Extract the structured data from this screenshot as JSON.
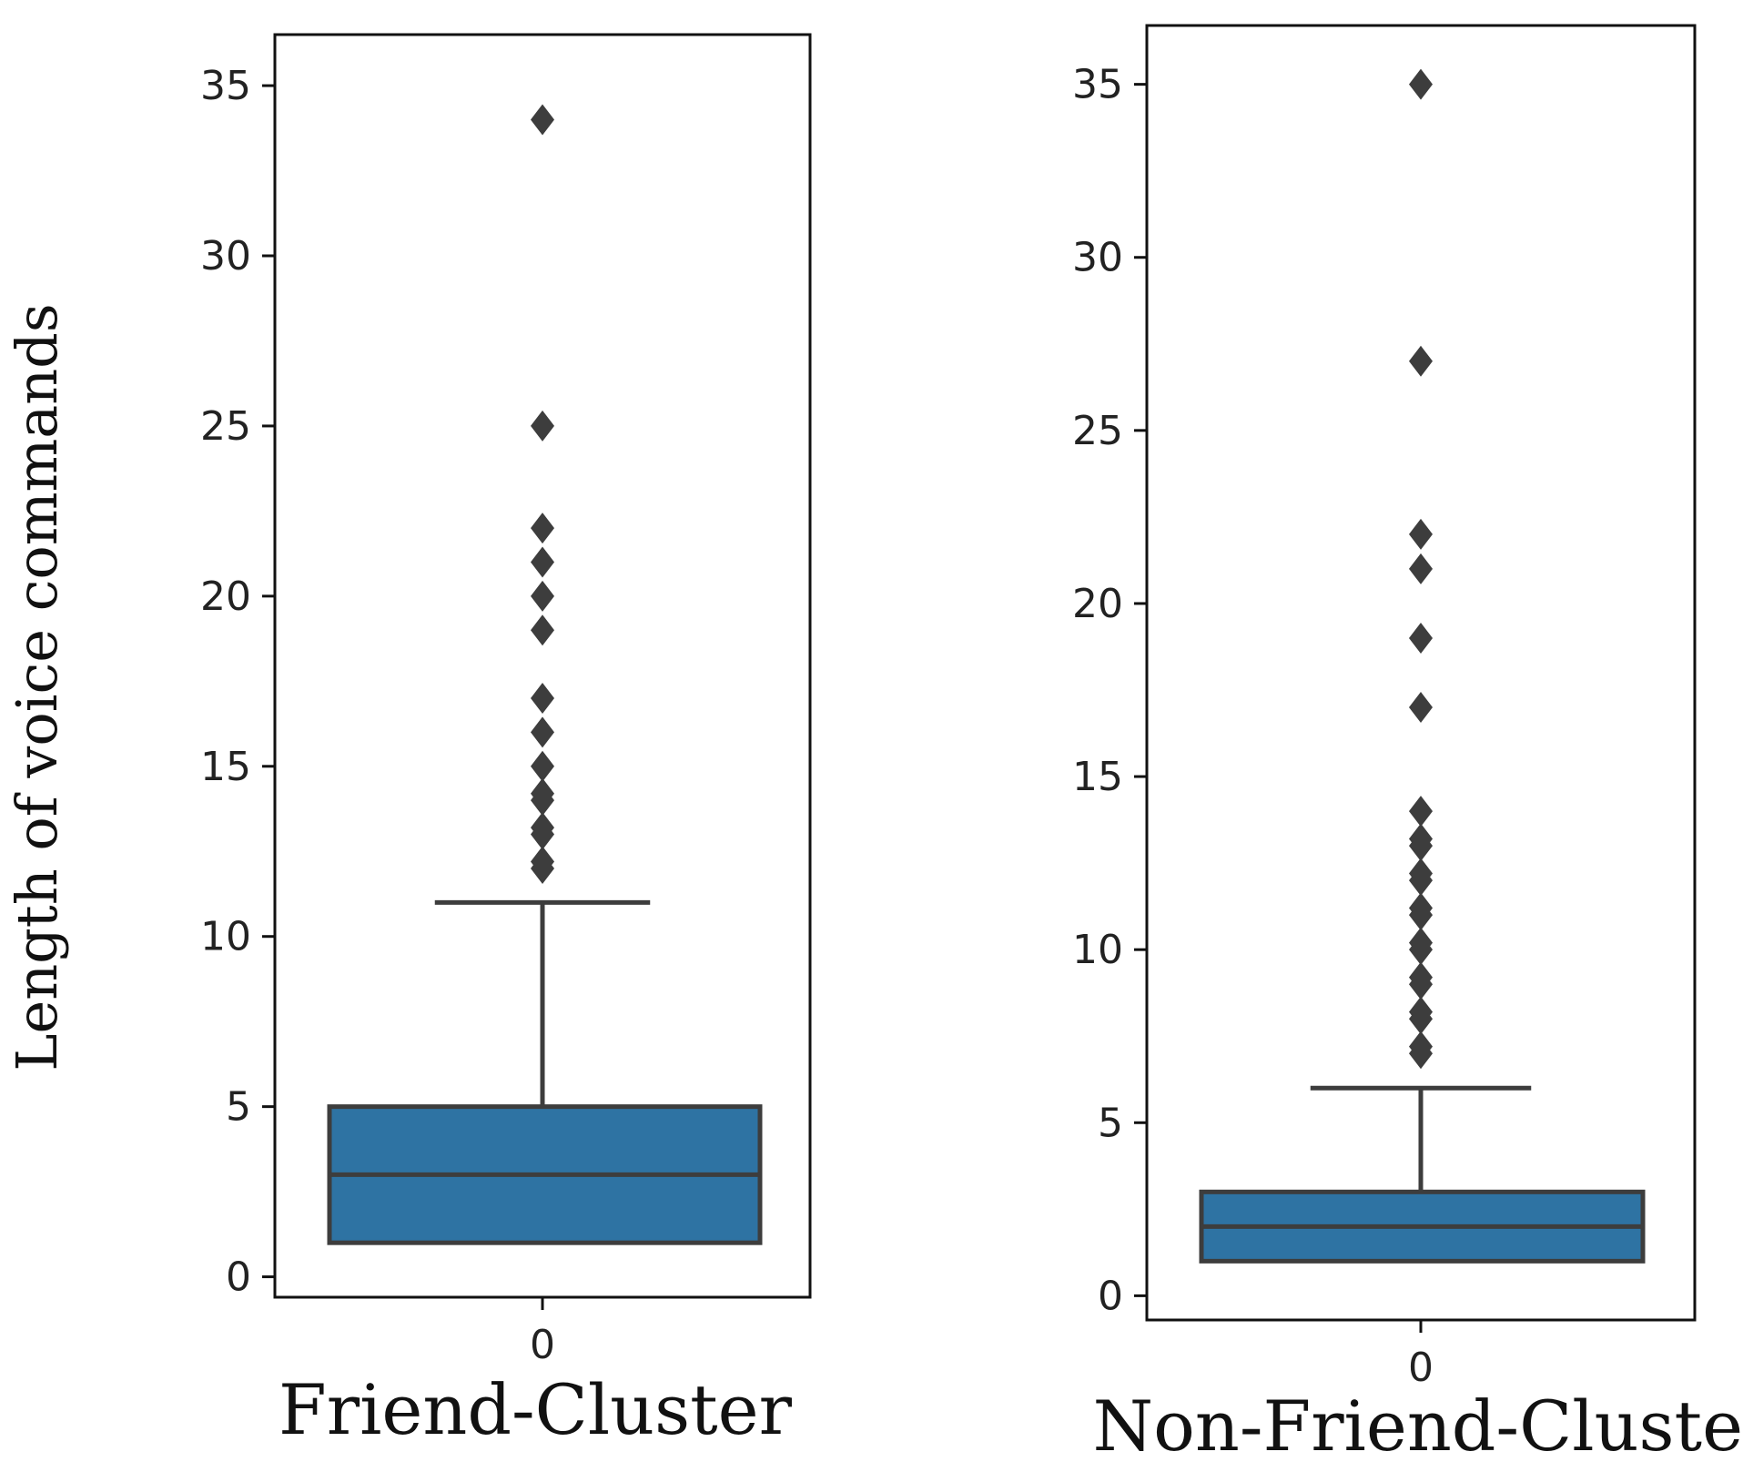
{
  "figure": {
    "ylabel": "Length of voice commands"
  },
  "colors": {
    "box_fill": "#2e73a3",
    "line": "#3d3d3d",
    "outlier": "#3d3d3d"
  },
  "chart_data": [
    {
      "type": "box",
      "xlabel": "Friend-Cluster",
      "categories": [
        "0"
      ],
      "ylim": [
        -0.6,
        36.5
      ],
      "yticks": [
        0,
        5,
        10,
        15,
        20,
        25,
        30,
        35
      ],
      "box": {
        "q1": 1,
        "median": 3,
        "q3": 5,
        "whisker_low": 1,
        "whisker_high": 11
      },
      "outliers": [
        12,
        12.2,
        13,
        13.2,
        14,
        14.2,
        15,
        16,
        17,
        19,
        20,
        21,
        22,
        25,
        34
      ]
    },
    {
      "type": "box",
      "xlabel": "Non-Friend-Cluster",
      "categories": [
        "0"
      ],
      "ylim": [
        -0.7,
        36.7
      ],
      "yticks": [
        0,
        5,
        10,
        15,
        20,
        25,
        30,
        35
      ],
      "box": {
        "q1": 1,
        "median": 2,
        "q3": 3,
        "whisker_low": 1,
        "whisker_high": 6
      },
      "outliers": [
        7,
        7.2,
        8,
        8.2,
        9,
        9.2,
        10,
        10.2,
        11,
        11.2,
        12,
        12.2,
        13,
        13.2,
        14,
        17,
        19,
        21,
        22,
        27,
        35
      ]
    }
  ]
}
